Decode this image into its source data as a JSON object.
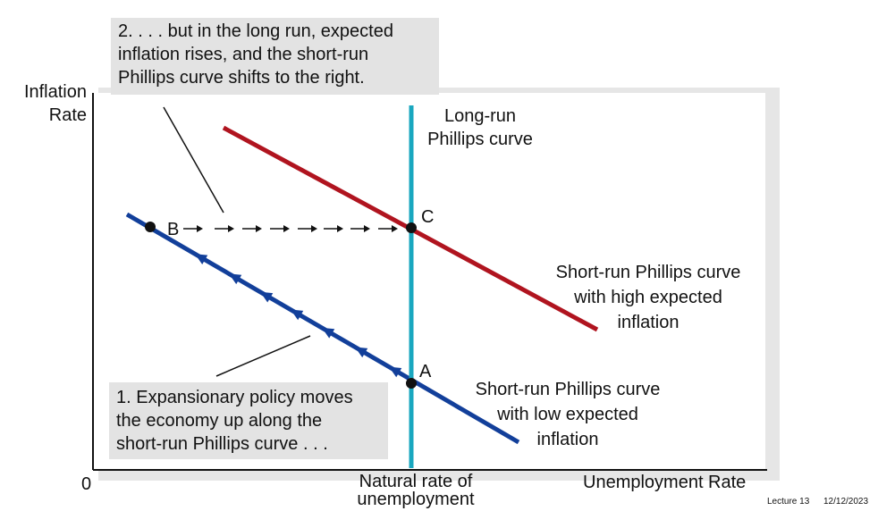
{
  "diagram": {
    "y_axis_label_line1": "Inflation",
    "y_axis_label_line2": "Rate",
    "x_axis_label": "Unemployment Rate",
    "origin_label": "0",
    "natural_rate_line1": "Natural rate of",
    "natural_rate_line2": "unemployment",
    "long_run_label_line1": "Long-run",
    "long_run_label_line2": "Phillips curve",
    "high_curve_line1": "Short-run Phillips curve",
    "high_curve_line2": "with high expected",
    "high_curve_line3": "inflation",
    "low_curve_line1": "Short-run Phillips curve",
    "low_curve_line2": "with low expected",
    "low_curve_line3": "inflation",
    "point_a": "A",
    "point_b": "B",
    "point_c": "C",
    "callout_top_line1": "2. . . . but in the long run, expected",
    "callout_top_line2": "inflation rises, and the short-run",
    "callout_top_line3": "Phillips curve shifts to the right.",
    "callout_bottom_line1": "1. Expansionary policy moves",
    "callout_bottom_line2": "the economy up along the",
    "callout_bottom_line3": "short-run Phillips curve . . .",
    "colors": {
      "long_run": "#1aa7bf",
      "short_run_low": "#123f9a",
      "short_run_high": "#b0141f",
      "callout_bg": "#e3e3e3"
    }
  },
  "footer": {
    "lecture": "Lecture 13",
    "date": "12/12/2023"
  }
}
